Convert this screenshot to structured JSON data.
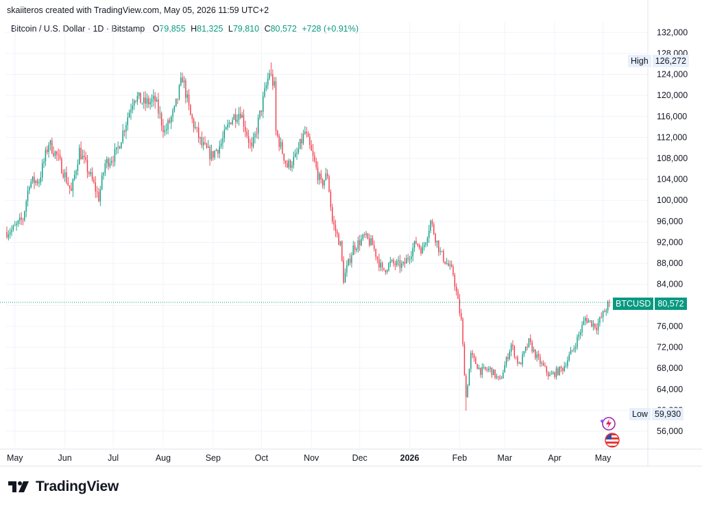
{
  "header": {
    "created_by": "skaiiteros created with TradingView.com, May 05, 2026 11:59 UTC+2"
  },
  "legend": {
    "symbol": "Bitcoin / U.S. Dollar · 1D · Bitstamp",
    "o_label": "O",
    "o_value": "79,855",
    "h_label": "H",
    "h_value": "81,325",
    "l_label": "L",
    "l_value": "79,810",
    "c_label": "C",
    "c_value": "80,572",
    "change": "+728 (+0.91%)"
  },
  "price_tags": {
    "high_label": "High",
    "high_value": "126,272",
    "low_label": "Low",
    "low_value": "59,930",
    "last_label": "BTCUSD",
    "last_value": "80,572"
  },
  "brand": {
    "name": "TradingView"
  },
  "colors": {
    "up": "#089981",
    "down": "#f23645",
    "grid": "#f0f3fa",
    "last_price_line": "#089981"
  },
  "icons": [
    "tradingview-logo-icon",
    "ai-sparkle-icon",
    "us-flag-icon"
  ],
  "chart_data": {
    "type": "candlestick",
    "interval": "1D",
    "ylim": [
      53000,
      134000
    ],
    "y_ticks": [
      132000,
      128000,
      124000,
      120000,
      116000,
      112000,
      108000,
      104000,
      100000,
      96000,
      92000,
      88000,
      84000,
      80000,
      76000,
      72000,
      68000,
      64000,
      60000,
      56000
    ],
    "y_tick_labels": [
      "132,000",
      "128,000",
      "124,000",
      "120,000",
      "116,000",
      "112,000",
      "108,000",
      "104,000",
      "100,000",
      "96,000",
      "92,000",
      "88,000",
      "84,000",
      "80,000",
      "76,000",
      "72,000",
      "68,000",
      "64,000",
      "60,000",
      "56,000"
    ],
    "x_range": [
      "2025-04-26",
      "2026-05-05"
    ],
    "x_ticks": [
      {
        "date": "2025-05-01",
        "label": "May"
      },
      {
        "date": "2025-06-01",
        "label": "Jun"
      },
      {
        "date": "2025-07-01",
        "label": "Jul"
      },
      {
        "date": "2025-08-01",
        "label": "Aug"
      },
      {
        "date": "2025-09-01",
        "label": "Sep"
      },
      {
        "date": "2025-10-01",
        "label": "Oct"
      },
      {
        "date": "2025-11-01",
        "label": "Nov"
      },
      {
        "date": "2025-12-01",
        "label": "Dec"
      },
      {
        "date": "2026-01-01",
        "label": "2026",
        "bold": true
      },
      {
        "date": "2026-02-01",
        "label": "Feb"
      },
      {
        "date": "2026-03-01",
        "label": "Mar"
      },
      {
        "date": "2026-04-01",
        "label": "Apr"
      },
      {
        "date": "2026-05-01",
        "label": "May"
      }
    ],
    "last_price": 80572,
    "high": 126272,
    "low": 59930,
    "price_path": [
      [
        "2025-04-26",
        94000
      ],
      [
        "2025-04-30",
        94500
      ],
      [
        "2025-05-06",
        96500
      ],
      [
        "2025-05-10",
        103500
      ],
      [
        "2025-05-16",
        103800
      ],
      [
        "2025-05-22",
        111000
      ],
      [
        "2025-05-27",
        108500
      ],
      [
        "2025-06-01",
        104800
      ],
      [
        "2025-06-05",
        101500
      ],
      [
        "2025-06-10",
        109500
      ],
      [
        "2025-06-17",
        104500
      ],
      [
        "2025-06-22",
        100500
      ],
      [
        "2025-06-26",
        107000
      ],
      [
        "2025-07-03",
        109000
      ],
      [
        "2025-07-10",
        116000
      ],
      [
        "2025-07-14",
        120000
      ],
      [
        "2025-07-20",
        118500
      ],
      [
        "2025-07-27",
        119000
      ],
      [
        "2025-08-02",
        113000
      ],
      [
        "2025-08-08",
        117000
      ],
      [
        "2025-08-13",
        123500
      ],
      [
        "2025-08-18",
        116000
      ],
      [
        "2025-08-25",
        110500
      ],
      [
        "2025-08-31",
        108500
      ],
      [
        "2025-09-06",
        110800
      ],
      [
        "2025-09-12",
        115500
      ],
      [
        "2025-09-18",
        117000
      ],
      [
        "2025-09-25",
        109500
      ],
      [
        "2025-10-02",
        119000
      ],
      [
        "2025-10-06",
        124500
      ],
      [
        "2025-10-09",
        121500
      ],
      [
        "2025-10-10",
        113000
      ],
      [
        "2025-10-17",
        106500
      ],
      [
        "2025-10-22",
        108000
      ],
      [
        "2025-10-28",
        113000
      ],
      [
        "2025-11-03",
        107000
      ],
      [
        "2025-11-07",
        103000
      ],
      [
        "2025-11-11",
        105000
      ],
      [
        "2025-11-14",
        96000
      ],
      [
        "2025-11-19",
        91500
      ],
      [
        "2025-11-21",
        85000
      ],
      [
        "2025-11-27",
        91000
      ],
      [
        "2025-12-04",
        93000
      ],
      [
        "2025-12-09",
        91500
      ],
      [
        "2025-12-15",
        86500
      ],
      [
        "2025-12-20",
        88000
      ],
      [
        "2025-12-28",
        87500
      ],
      [
        "2026-01-05",
        92000
      ],
      [
        "2026-01-09",
        90500
      ],
      [
        "2026-01-14",
        96000
      ],
      [
        "2026-01-20",
        90000
      ],
      [
        "2026-01-28",
        86000
      ],
      [
        "2026-02-02",
        77000
      ],
      [
        "2026-02-05",
        62500
      ],
      [
        "2026-02-08",
        70500
      ],
      [
        "2026-02-14",
        67500
      ],
      [
        "2026-02-20",
        67800
      ],
      [
        "2026-02-26",
        65500
      ],
      [
        "2026-03-05",
        72500
      ],
      [
        "2026-03-10",
        68500
      ],
      [
        "2026-03-16",
        73000
      ],
      [
        "2026-03-21",
        70000
      ],
      [
        "2026-03-29",
        66500
      ],
      [
        "2026-04-06",
        68000
      ],
      [
        "2026-04-13",
        72000
      ],
      [
        "2026-04-20",
        77500
      ],
      [
        "2026-04-27",
        76000
      ],
      [
        "2026-05-05",
        80572
      ]
    ]
  }
}
